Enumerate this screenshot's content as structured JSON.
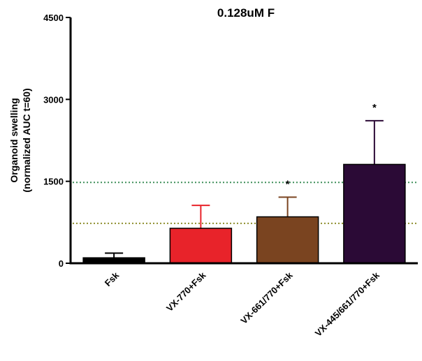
{
  "chart_data": {
    "type": "bar",
    "title": "0.128uM F",
    "ylabel_line1": "Organoid swelling",
    "ylabel_line2": "(normalized AUC t=60)",
    "xlabel": "",
    "ylim": [
      0,
      4500
    ],
    "yticks": [
      0,
      1500,
      3000,
      4500
    ],
    "yticklabels": [
      "0",
      "1500",
      "3000",
      "4500"
    ],
    "categories": [
      "Fsk",
      "VX-770+Fsk",
      "VX-661/770+Fsk",
      "VX-445/661/770+Fsk"
    ],
    "values": [
      100,
      640,
      850,
      1810
    ],
    "errors": [
      85,
      420,
      360,
      800
    ],
    "colors": [
      "#000000",
      "#e8232a",
      "#7a4420",
      "#2b0a36"
    ],
    "significance": [
      "",
      "",
      "*",
      "*"
    ],
    "reference_lines": [
      {
        "value": 1480,
        "color": "#3f8f5a"
      },
      {
        "value": 730,
        "color": "#8f8f2e"
      }
    ],
    "grid": false,
    "legend": "none"
  }
}
